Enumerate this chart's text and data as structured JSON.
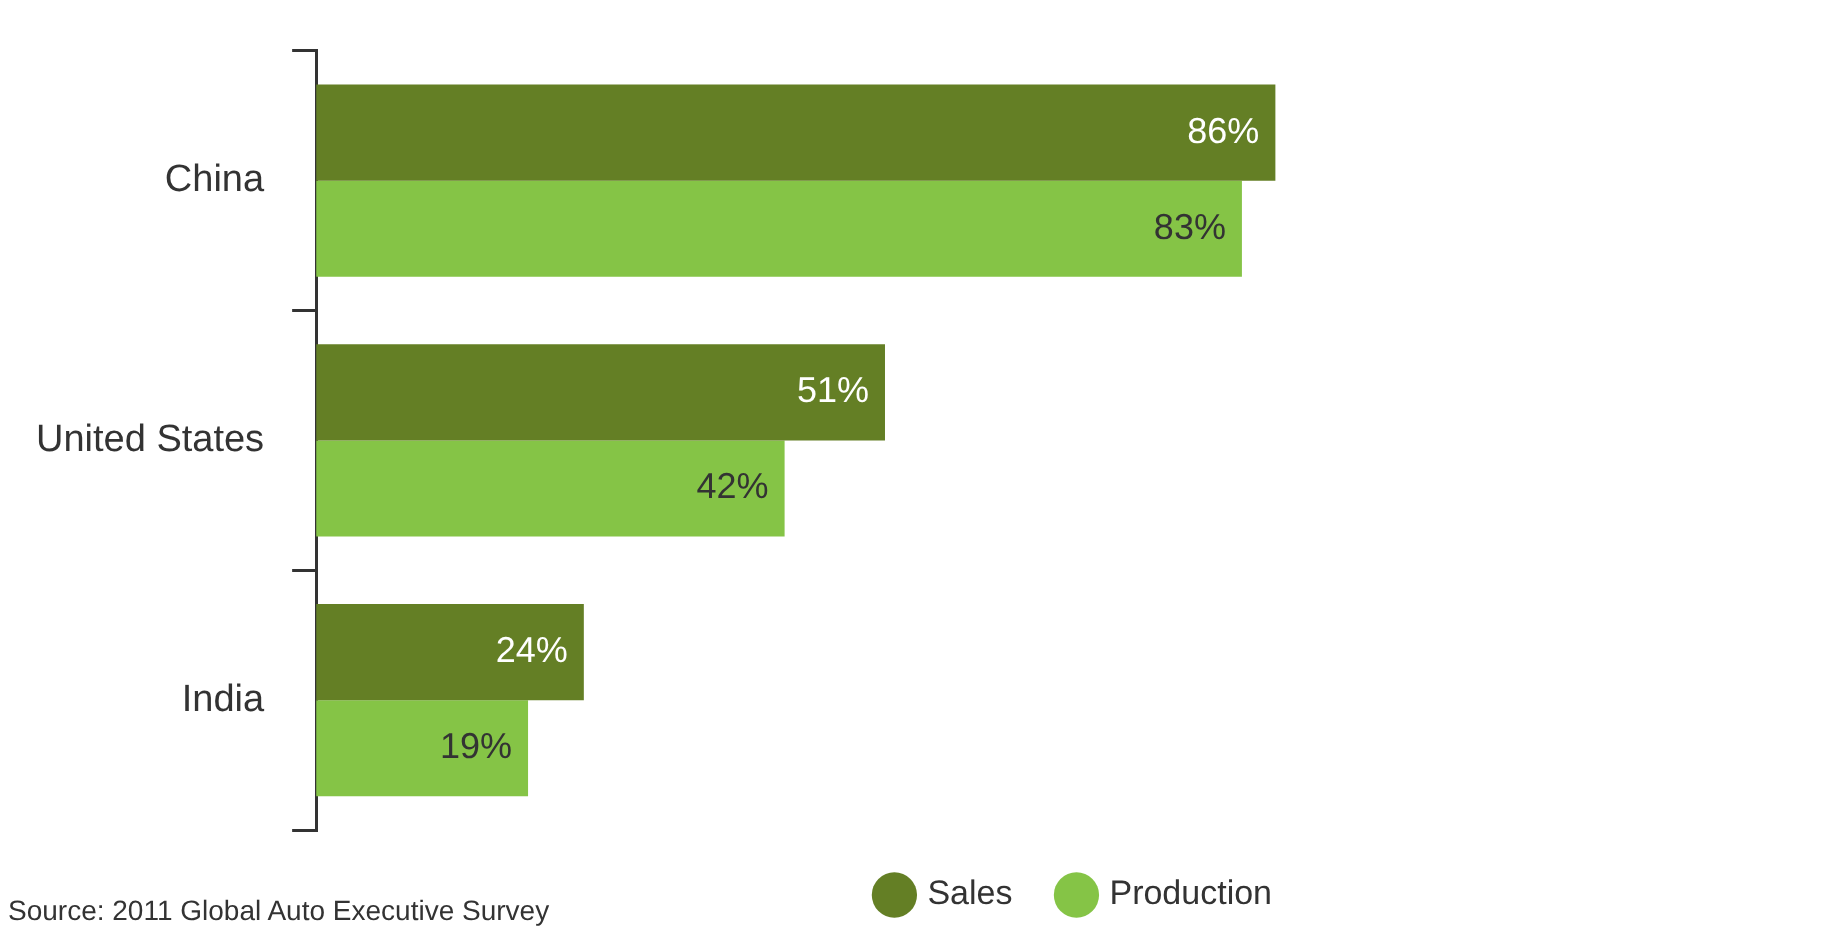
{
  "chart_data": {
    "type": "bar",
    "orientation": "horizontal",
    "categories": [
      "China",
      "United States",
      "India"
    ],
    "series": [
      {
        "name": "Sales",
        "color": "#647f25",
        "values": [
          86,
          51,
          24
        ],
        "value_labels": [
          "86%",
          "51%",
          "24%"
        ]
      },
      {
        "name": "Production",
        "color": "#85c446",
        "values": [
          83,
          42,
          19
        ],
        "value_labels": [
          "83%",
          "42%",
          "19%"
        ]
      }
    ],
    "tick_labels": "y",
    "legend": "bottom right",
    "grid": false,
    "annotations": [
      "Source: 2011 Global Auto Executive Survey"
    ]
  }
}
